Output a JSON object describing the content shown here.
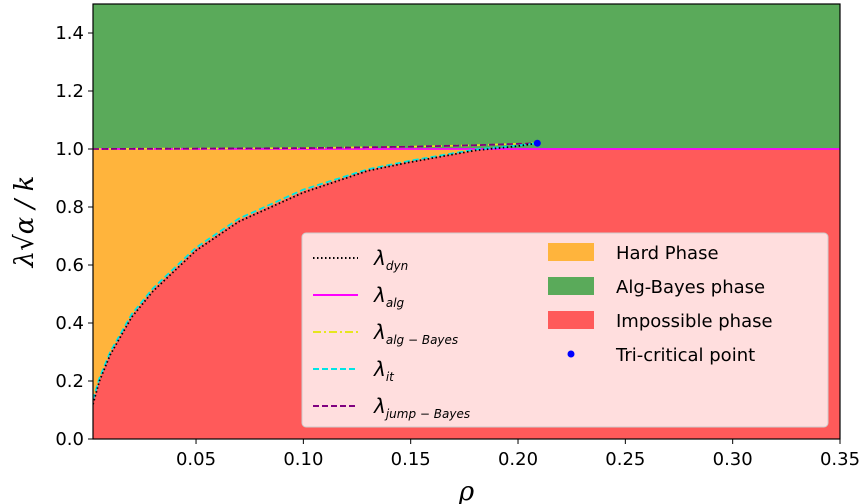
{
  "chart_data": {
    "type": "area",
    "xlabel": "ρ",
    "ylabel": "λ√α / k",
    "xlim": [
      0.002,
      0.35
    ],
    "ylim": [
      0.0,
      1.5
    ],
    "x_ticks": [
      0.05,
      0.1,
      0.15,
      0.2,
      0.25,
      0.3,
      0.35
    ],
    "x_tick_labels": [
      "0.05",
      "0.10",
      "0.15",
      "0.20",
      "0.25",
      "0.30",
      "0.35"
    ],
    "y_ticks": [
      0.0,
      0.2,
      0.4,
      0.6,
      0.8,
      1.0,
      1.2,
      1.4
    ],
    "y_tick_labels": [
      "0.0",
      "0.2",
      "0.4",
      "0.6",
      "0.8",
      "1.0",
      "1.2",
      "1.4"
    ],
    "legend_position": "bottom-right",
    "regions": [
      {
        "name": "Hard Phase",
        "color": "#FFB43C"
      },
      {
        "name": "Alg-Bayes phase",
        "color": "#5AAA5A"
      },
      {
        "name": "Impossible phase",
        "color": "#FF5A5A"
      }
    ],
    "series": [
      {
        "name": "λ_dyn",
        "main": "λ",
        "sub": "dyn",
        "style": "dotted",
        "color": "#000000",
        "x": [
          0.002,
          0.005,
          0.01,
          0.02,
          0.03,
          0.05,
          0.07,
          0.1,
          0.13,
          0.15,
          0.18,
          0.2,
          0.209
        ],
        "y": [
          0.12,
          0.2,
          0.29,
          0.42,
          0.51,
          0.65,
          0.75,
          0.85,
          0.925,
          0.955,
          0.995,
          1.01,
          1.02
        ]
      },
      {
        "name": "λ_alg",
        "main": "λ",
        "sub": "alg",
        "style": "solid",
        "color": "#FF00FF",
        "x": [
          0.002,
          0.35
        ],
        "y": [
          1.0,
          1.0
        ]
      },
      {
        "name": "λ_alg-Bayes",
        "main": "λ",
        "sub": "alg − Bayes",
        "style": "dashdot",
        "color": "#E6E61E",
        "x": [
          0.002,
          0.1,
          0.15,
          0.18,
          0.209
        ],
        "y": [
          1.0,
          1.003,
          1.008,
          1.013,
          1.02
        ]
      },
      {
        "name": "λ_it",
        "main": "λ",
        "sub": "it",
        "style": "dashed",
        "color": "#00E5E5",
        "x": [
          0.002,
          0.005,
          0.01,
          0.02,
          0.03,
          0.05,
          0.07,
          0.1,
          0.13,
          0.15,
          0.18,
          0.2,
          0.209
        ],
        "y": [
          0.135,
          0.21,
          0.3,
          0.43,
          0.52,
          0.66,
          0.76,
          0.86,
          0.93,
          0.96,
          0.998,
          1.012,
          1.02
        ]
      },
      {
        "name": "λ_jump-Bayes",
        "main": "λ",
        "sub": "jump − Bayes",
        "style": "dashed",
        "color": "#800080",
        "x": [
          0.002,
          0.1,
          0.15,
          0.18,
          0.209
        ],
        "y": [
          1.0,
          1.003,
          1.008,
          1.013,
          1.02
        ]
      }
    ],
    "points": [
      {
        "name": "Tri-critical point",
        "x": 0.209,
        "y": 1.02,
        "color": "#0000FF"
      }
    ],
    "boundary": {
      "x": [
        0.002,
        0.005,
        0.01,
        0.02,
        0.03,
        0.05,
        0.07,
        0.1,
        0.13,
        0.15,
        0.18,
        0.2,
        0.209,
        0.35
      ],
      "y": [
        0.13,
        0.205,
        0.295,
        0.425,
        0.515,
        0.655,
        0.755,
        0.855,
        0.928,
        0.958,
        0.996,
        1.0,
        1.0,
        1.0
      ]
    }
  }
}
